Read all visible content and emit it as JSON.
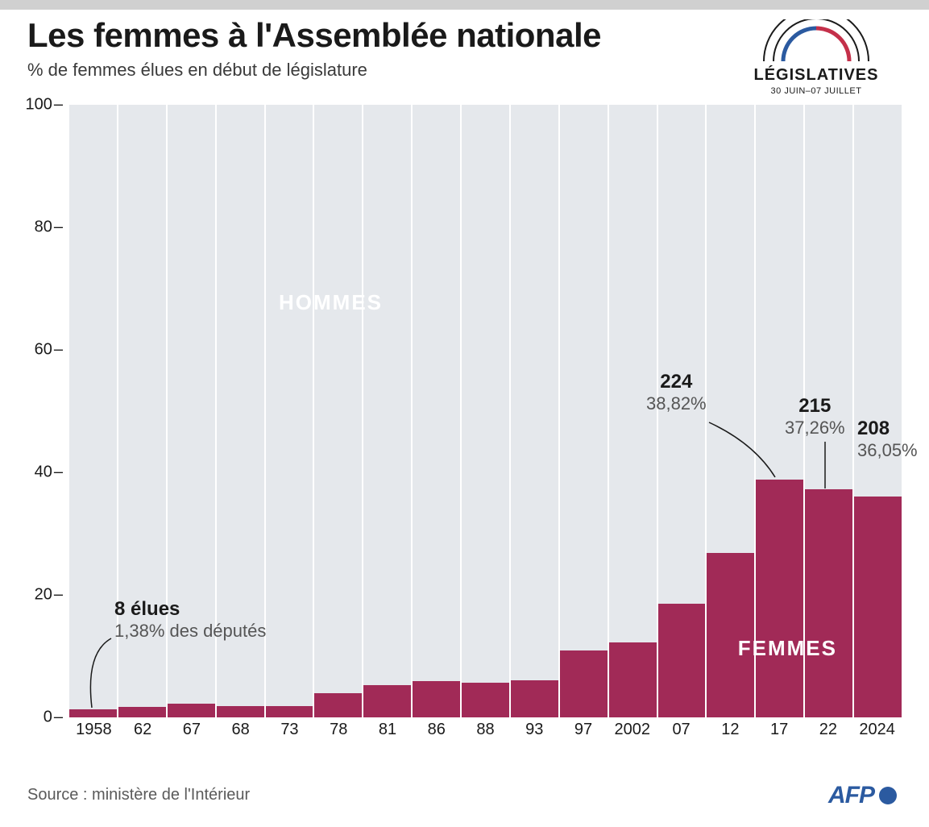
{
  "header": {
    "title": "Les femmes à l'Assemblée nationale",
    "subtitle": "% de femmes élues en début de législature"
  },
  "logo": {
    "title": "LÉGISLATIVES",
    "dates": "30 JUIN–07 JUILLET",
    "arc_outer": "#1a1a1a",
    "arc_blue": "#2b5aa0",
    "arc_red": "#c4304a"
  },
  "chart": {
    "type": "bar",
    "ylim": [
      0,
      100
    ],
    "ytick_step": 20,
    "yticks": [
      0,
      20,
      40,
      60,
      80,
      100
    ],
    "background_color": "#e5e8ec",
    "bar_color": "#a12a57",
    "gap_color": "#ffffff",
    "label_hommes": "HOMMES",
    "label_femmes": "FEMMES",
    "overlay_color": "#ffffff",
    "years": [
      "1958",
      "62",
      "67",
      "68",
      "73",
      "78",
      "81",
      "86",
      "88",
      "93",
      "97",
      "2002",
      "07",
      "12",
      "17",
      "22",
      "2024"
    ],
    "values": [
      1.38,
      1.7,
      2.3,
      1.8,
      1.8,
      4.0,
      5.3,
      5.9,
      5.7,
      6.1,
      10.9,
      12.3,
      18.5,
      26.9,
      38.82,
      37.26,
      36.05
    ],
    "x_label_fontsize": 20,
    "y_label_fontsize": 20
  },
  "callouts": {
    "first": {
      "big": "8 élues",
      "pct": "1,38% des députés"
    },
    "c17": {
      "big": "224",
      "pct": "38,82%"
    },
    "c22": {
      "big": "215",
      "pct": "37,26%"
    },
    "c24": {
      "big": "208",
      "pct": "36,05%"
    }
  },
  "source": "Source : ministère de l'Intérieur",
  "afp": {
    "label": "AFP",
    "color": "#2b5aa0"
  }
}
